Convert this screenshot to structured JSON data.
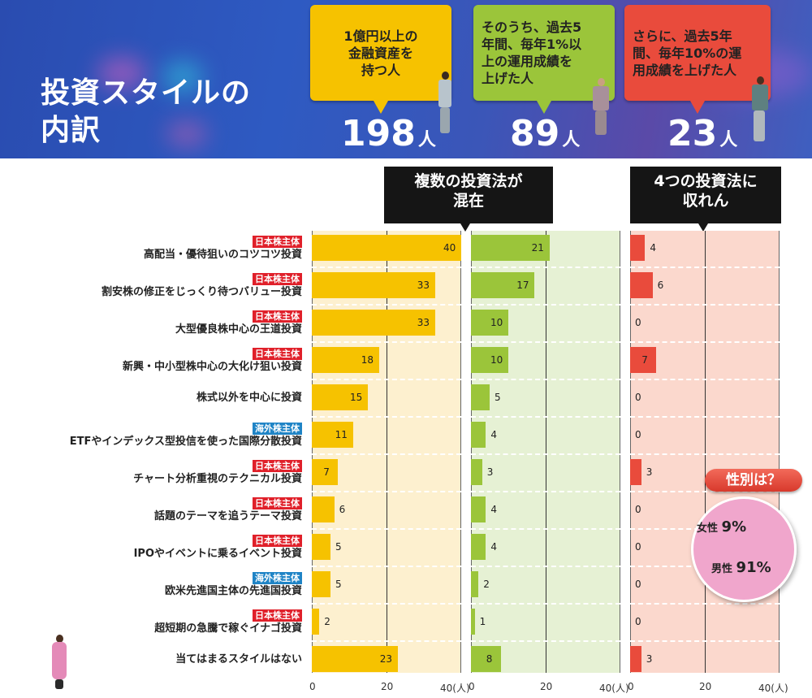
{
  "header": {
    "title_line1": "投資スタイルの",
    "title_line2": "内訳",
    "groups": [
      {
        "description": "1億円以上の\n金融資産を\n持つ人",
        "count": "198",
        "unit": "人",
        "color": "#f6c200"
      },
      {
        "description": "そのうち、過去5\n年間、毎年1%以\n上の運用成績を\n上げた人",
        "count": "89",
        "unit": "人",
        "color": "#9bc53a"
      },
      {
        "description": "さらに、過去5年\n間、毎年10%の運\n用成績を上げた人",
        "count": "23",
        "unit": "人",
        "color": "#e94b3c"
      }
    ]
  },
  "callouts": {
    "mixed": "複数の投資法が\n混在",
    "four_methods": "4つの投資法に\n収れん"
  },
  "badges": {
    "japan": "日本株主体",
    "overseas": "海外株主体"
  },
  "gender": {
    "title": "性別は？",
    "female_label": "女性",
    "female_pct": "9%",
    "male_label": "男性",
    "male_pct": "91%",
    "female_color": "#f0a6cc",
    "male_color": "#8fd3f2"
  },
  "axis": {
    "ticks": [
      "0",
      "20",
      "40(人)"
    ]
  },
  "chart_data": {
    "type": "bar",
    "orientation": "horizontal",
    "title": "投資スタイルの内訳",
    "xlabel": "人",
    "xlim": [
      0,
      40
    ],
    "categories": [
      {
        "label": "高配当・優待狙いのコツコツ投資",
        "badge": "日本株主体"
      },
      {
        "label": "割安株の修正をじっくり待つバリュー投資",
        "badge": "日本株主体"
      },
      {
        "label": "大型優良株中心の王道投資",
        "badge": "日本株主体"
      },
      {
        "label": "新興・中小型株中心の大化け狙い投資",
        "badge": "日本株主体"
      },
      {
        "label": "株式以外を中心に投資",
        "badge": ""
      },
      {
        "label": "ETFやインデックス型投信を使った国際分散投資",
        "badge": "海外株主体"
      },
      {
        "label": "チャート分析重視のテクニカル投資",
        "badge": "日本株主体"
      },
      {
        "label": "話題のテーマを追うテーマ投資",
        "badge": "日本株主体"
      },
      {
        "label": "IPOやイベントに乗るイベント投資",
        "badge": "日本株主体"
      },
      {
        "label": "欧米先進国主体の先進国投資",
        "badge": "海外株主体"
      },
      {
        "label": "超短期の急騰で稼ぐイナゴ投資",
        "badge": "日本株主体"
      },
      {
        "label": "当てはまるスタイルはない",
        "badge": ""
      }
    ],
    "series": [
      {
        "name": "1億円以上の金融資産を持つ人 (198人)",
        "color": "#f6c200",
        "values": [
          40,
          33,
          33,
          18,
          15,
          11,
          7,
          6,
          5,
          5,
          2,
          23
        ]
      },
      {
        "name": "過去5年間、毎年1%以上の運用成績 (89人)",
        "color": "#9bc53a",
        "values": [
          21,
          17,
          10,
          10,
          5,
          4,
          3,
          4,
          4,
          2,
          1,
          8
        ]
      },
      {
        "name": "過去5年間、毎年10%の運用成績 (23人)",
        "color": "#e94b3c",
        "values": [
          4,
          6,
          0,
          7,
          0,
          0,
          3,
          0,
          0,
          0,
          0,
          3
        ]
      }
    ],
    "pie": {
      "title": "性別は？",
      "slices": [
        {
          "label": "女性",
          "value": 9
        },
        {
          "label": "男性",
          "value": 91
        }
      ]
    }
  }
}
